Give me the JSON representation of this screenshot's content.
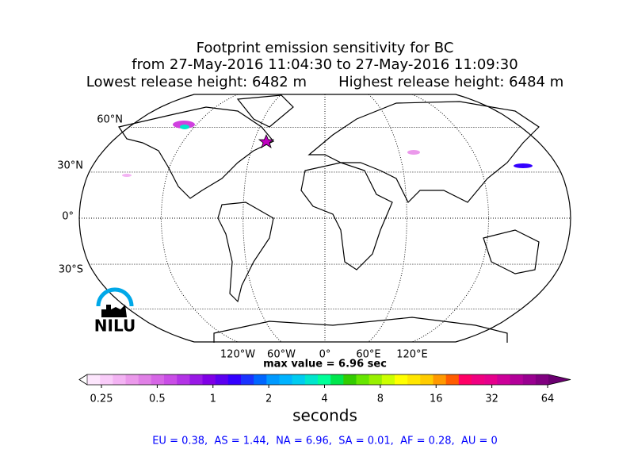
{
  "header": {
    "title_lines": [
      "Footprint emission sensitivity for BC",
      "from 27-May-2016 11:04:30 to 27-May-2016 11:09:30",
      "Lowest release height: 6482 m       Highest release height: 6484 m"
    ]
  },
  "map": {
    "latitude_labels": [
      "60°N",
      "30°N",
      "0°",
      "30°S"
    ],
    "longitude_labels": [
      "120°W",
      "60°W",
      "0°",
      "60°E",
      "120°E"
    ],
    "logo": "NILU"
  },
  "max_value_text": "max value = 6.96 sec",
  "colorbar": {
    "ticks": [
      0.25,
      0.5,
      1,
      2,
      4,
      8,
      16,
      32,
      64
    ],
    "label": "seconds",
    "under_color": "#ffffff",
    "over_color": "#6a0070",
    "colors": [
      "#fde6fd",
      "#f9ccf9",
      "#f3b3f3",
      "#eb99eb",
      "#e080e6",
      "#d666e6",
      "#c94de6",
      "#b333e6",
      "#9919e6",
      "#8000e6",
      "#5c00f0",
      "#3300ff",
      "#1a33ff",
      "#0066ff",
      "#0099ff",
      "#00b3ff",
      "#00ccf0",
      "#00e6cc",
      "#00ff99",
      "#00e64d",
      "#33cc00",
      "#66e600",
      "#99f000",
      "#ccff00",
      "#ffff00",
      "#ffe600",
      "#ffcc00",
      "#ff9900",
      "#ff5c00",
      "#ff0066",
      "#f00080",
      "#e6008c",
      "#cc0099",
      "#b30099",
      "#990090",
      "#800080"
    ]
  },
  "footer": "EU = 0.38,  AS = 1.44,  NA = 6.96,  SA = 0.01,  AF = 0.28,  AU = 0"
}
